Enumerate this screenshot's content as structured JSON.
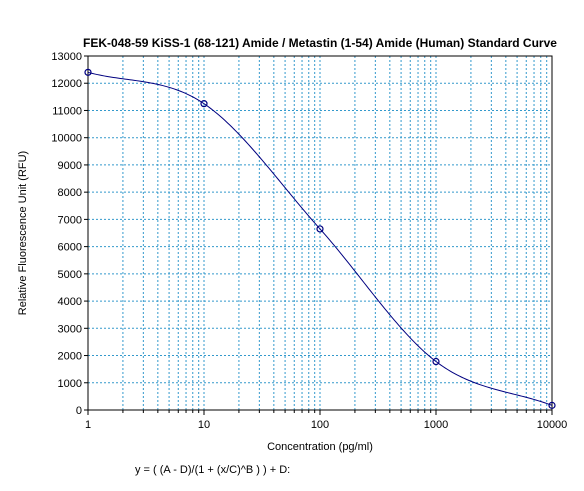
{
  "chart_data": {
    "type": "scatter",
    "title": "FEK-048-59 KiSS-1 (68-121) Amide / Metastin (1-54) Amide (Human) Standard Curve",
    "xlabel": "Concentration (pg/ml)",
    "ylabel": "Relative Fluorescence Unit (RFU)",
    "x_scale": "log",
    "xlim": [
      1,
      10000
    ],
    "ylim": [
      0,
      13000
    ],
    "x_ticks": [
      "1",
      "10",
      "100",
      "1000",
      "10000"
    ],
    "y_ticks": [
      "0",
      "1000",
      "2000",
      "3000",
      "4000",
      "5000",
      "6000",
      "7000",
      "8000",
      "9000",
      "10000",
      "11000",
      "12000",
      "13000"
    ],
    "grid": true,
    "series": [
      {
        "x": [
          1,
          10,
          100,
          1000,
          10000
        ],
        "y": [
          12400,
          11250,
          6650,
          1780,
          170
        ],
        "marker": "circle",
        "fit": "4PL curve"
      }
    ],
    "formula": "y = ( (A - D)/(1 + (x/C)^B ) ) + D:",
    "colors": {
      "curve": "#000080",
      "grid": "#3399cc",
      "markers": "#000080"
    }
  }
}
